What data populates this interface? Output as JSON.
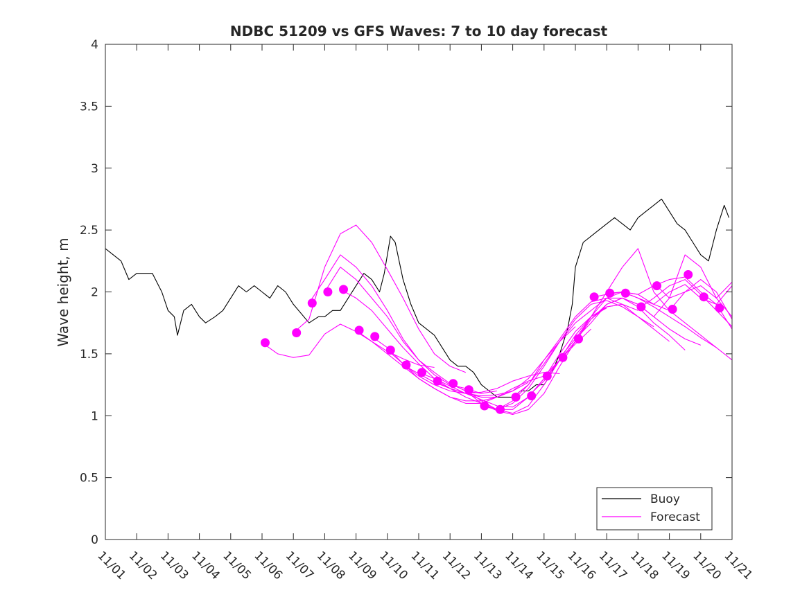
{
  "chart_data": {
    "type": "line",
    "title": "NDBC 51209 vs GFS Waves: 7 to 10 day forecast",
    "xlabel": "",
    "ylabel": "Wave height, m",
    "xlim": [
      0,
      20
    ],
    "ylim": [
      0,
      4
    ],
    "x_unit": "days since 11/01",
    "x_tick_values": [
      0,
      1,
      2,
      3,
      4,
      5,
      6,
      7,
      8,
      9,
      10,
      11,
      12,
      13,
      14,
      15,
      16,
      17,
      18,
      19,
      20
    ],
    "x_tick_labels": [
      "11/01",
      "11/02",
      "11/03",
      "11/04",
      "11/05",
      "11/06",
      "11/07",
      "11/08",
      "11/09",
      "11/10",
      "11/11",
      "11/12",
      "11/13",
      "11/14",
      "11/15",
      "11/16",
      "11/17",
      "11/18",
      "11/19",
      "11/20",
      "11/21"
    ],
    "y_tick_values": [
      0,
      0.5,
      1,
      1.5,
      2,
      2.5,
      3,
      3.5,
      4
    ],
    "y_tick_labels": [
      "0",
      "0.5",
      "1",
      "1.5",
      "2",
      "2.5",
      "3",
      "3.5",
      "4"
    ],
    "grid": false,
    "legend": {
      "position": "bottom-right",
      "entries": [
        "Buoy",
        "Forecast"
      ]
    },
    "colors": {
      "buoy": "#000000",
      "forecast": "#ff00ff"
    },
    "buoy": {
      "name": "Buoy",
      "x": [
        0,
        0.5,
        0.75,
        1,
        1.5,
        1.8,
        2,
        2.2,
        2.3,
        2.5,
        2.75,
        3,
        3.2,
        3.5,
        3.75,
        4,
        4.25,
        4.5,
        4.75,
        5,
        5.25,
        5.5,
        5.75,
        6,
        6.5,
        6.8,
        7,
        7.25,
        7.5,
        7.75,
        8,
        8.25,
        8.5,
        8.75,
        8.9,
        9,
        9.1,
        9.25,
        9.5,
        9.75,
        10,
        10.25,
        10.5,
        10.75,
        11,
        11.25,
        11.5,
        11.75,
        12,
        12.25,
        12.5,
        12.75,
        13,
        13.25,
        13.5,
        13.75,
        14,
        14.25,
        14.5,
        14.75,
        14.9,
        15,
        15.25,
        15.5,
        15.75,
        16,
        16.25,
        16.5,
        16.75,
        17,
        17.25,
        17.5,
        17.75,
        18,
        18.25,
        18.5,
        18.75,
        19,
        19.25,
        19.5,
        19.75,
        19.9
      ],
      "y": [
        2.35,
        2.25,
        2.1,
        2.15,
        2.15,
        2.0,
        1.85,
        1.8,
        1.65,
        1.85,
        1.9,
        1.8,
        1.75,
        1.8,
        1.85,
        1.95,
        2.05,
        2.0,
        2.05,
        2.0,
        1.95,
        2.05,
        2.0,
        1.9,
        1.75,
        1.8,
        1.8,
        1.85,
        1.85,
        1.95,
        2.05,
        2.15,
        2.1,
        2.0,
        2.15,
        2.3,
        2.45,
        2.4,
        2.1,
        1.9,
        1.75,
        1.7,
        1.65,
        1.55,
        1.45,
        1.4,
        1.4,
        1.35,
        1.25,
        1.2,
        1.15,
        1.15,
        1.15,
        1.2,
        1.2,
        1.25,
        1.25,
        1.35,
        1.5,
        1.7,
        1.9,
        2.2,
        2.4,
        2.45,
        2.5,
        2.55,
        2.6,
        2.55,
        2.5,
        2.6,
        2.65,
        2.7,
        2.75,
        2.65,
        2.55,
        2.5,
        2.4,
        2.3,
        2.25,
        2.5,
        2.7,
        2.6
      ]
    },
    "forecast_series": [
      {
        "name": "Forecast",
        "x": [
          5.0,
          5.5,
          6.0,
          6.5,
          7.0,
          7.5,
          8.0,
          8.5,
          9.0,
          9.5,
          10.0,
          10.5
        ],
        "y": [
          1.59,
          1.5,
          1.47,
          1.49,
          1.66,
          1.74,
          1.68,
          1.6,
          1.52,
          1.46,
          1.41,
          1.39
        ]
      },
      {
        "name": "Forecast",
        "x": [
          6.0,
          6.5,
          7.0,
          7.5,
          8.0,
          8.5,
          9.0,
          9.5,
          10.0,
          10.5,
          11.0,
          11.5
        ],
        "y": [
          1.67,
          1.78,
          2.2,
          2.47,
          2.54,
          2.4,
          2.18,
          1.95,
          1.7,
          1.5,
          1.4,
          1.35
        ]
      },
      {
        "name": "Forecast",
        "x": [
          6.5,
          7.0,
          7.5,
          8.0,
          8.5,
          9.0,
          9.5,
          10.0,
          10.5,
          11.0,
          11.5,
          12.0
        ],
        "y": [
          1.91,
          2.1,
          2.3,
          2.2,
          2.05,
          1.85,
          1.62,
          1.45,
          1.33,
          1.25,
          1.22,
          1.18
        ]
      },
      {
        "name": "Forecast",
        "x": [
          7.0,
          7.5,
          8.0,
          8.5,
          9.0,
          9.5,
          10.0,
          10.5,
          11.0,
          11.5,
          12.0,
          12.5
        ],
        "y": [
          2.0,
          2.2,
          2.1,
          1.95,
          1.8,
          1.6,
          1.45,
          1.35,
          1.26,
          1.2,
          1.18,
          1.2
        ]
      },
      {
        "name": "Forecast",
        "x": [
          7.5,
          8.0,
          8.5,
          9.0,
          9.5,
          10.0,
          10.5,
          11.0,
          11.5,
          12.0,
          12.5,
          13.0
        ],
        "y": [
          2.02,
          1.95,
          1.85,
          1.7,
          1.55,
          1.42,
          1.3,
          1.22,
          1.18,
          1.16,
          1.17,
          1.2
        ]
      },
      {
        "name": "Forecast",
        "x": [
          8.0,
          8.5,
          9.0,
          9.5,
          10.0,
          10.5,
          11.0,
          11.5,
          12.0,
          12.5,
          13.0,
          13.5
        ],
        "y": [
          1.69,
          1.6,
          1.5,
          1.4,
          1.3,
          1.22,
          1.15,
          1.12,
          1.12,
          1.15,
          1.2,
          1.27
        ]
      },
      {
        "name": "Forecast",
        "x": [
          8.5,
          9.0,
          9.5,
          10.0,
          10.5,
          11.0,
          11.5,
          12.0,
          12.5,
          13.0,
          13.5,
          14.0
        ],
        "y": [
          1.64,
          1.55,
          1.42,
          1.3,
          1.22,
          1.15,
          1.1,
          1.1,
          1.15,
          1.22,
          1.28,
          1.32
        ]
      },
      {
        "name": "Forecast",
        "x": [
          9.0,
          9.5,
          10.0,
          10.5,
          11.0,
          11.5,
          12.0,
          12.5,
          13.0,
          13.5,
          14.0,
          14.5
        ],
        "y": [
          1.53,
          1.42,
          1.32,
          1.25,
          1.2,
          1.18,
          1.19,
          1.22,
          1.28,
          1.32,
          1.35,
          1.34
        ]
      },
      {
        "name": "Forecast",
        "x": [
          9.5,
          10.0,
          10.5,
          11.0,
          11.5,
          12.0,
          12.5,
          13.0,
          13.5,
          14.0,
          14.5,
          15.0
        ],
        "y": [
          1.41,
          1.34,
          1.27,
          1.22,
          1.18,
          1.15,
          1.15,
          1.2,
          1.3,
          1.45,
          1.6,
          1.72
        ]
      },
      {
        "name": "Forecast",
        "x": [
          10.0,
          10.5,
          11.0,
          11.5,
          12.0,
          12.5,
          13.0,
          13.5,
          14.0,
          14.5,
          15.0,
          15.5
        ],
        "y": [
          1.35,
          1.3,
          1.24,
          1.18,
          1.13,
          1.08,
          1.07,
          1.15,
          1.3,
          1.45,
          1.58,
          1.7
        ]
      },
      {
        "name": "Forecast",
        "x": [
          10.5,
          11.0,
          11.5,
          12.0,
          12.5,
          13.0,
          13.5,
          14.0,
          14.5,
          15.0,
          15.5,
          16.0
        ],
        "y": [
          1.28,
          1.22,
          1.15,
          1.1,
          1.05,
          1.05,
          1.15,
          1.3,
          1.5,
          1.68,
          1.8,
          1.87
        ]
      },
      {
        "name": "Forecast",
        "x": [
          11.0,
          11.5,
          12.0,
          12.5,
          13.0,
          13.5,
          14.0,
          14.5,
          15.0,
          15.5,
          16.0,
          16.5
        ],
        "y": [
          1.26,
          1.2,
          1.1,
          1.04,
          1.01,
          1.05,
          1.18,
          1.4,
          1.6,
          1.78,
          1.88,
          1.9
        ]
      },
      {
        "name": "Forecast",
        "x": [
          11.5,
          12.0,
          12.5,
          13.0,
          13.5,
          14.0,
          14.5,
          15.0,
          15.5,
          16.0,
          16.5,
          17.0
        ],
        "y": [
          1.21,
          1.12,
          1.05,
          1.02,
          1.08,
          1.25,
          1.45,
          1.65,
          1.8,
          1.88,
          1.9,
          1.85
        ]
      },
      {
        "name": "Forecast",
        "x": [
          12.0,
          12.5,
          13.0,
          13.5,
          14.0,
          14.5,
          15.0,
          15.5,
          16.0,
          16.5,
          17.0,
          17.5
        ],
        "y": [
          1.08,
          1.05,
          1.1,
          1.22,
          1.4,
          1.6,
          1.78,
          1.9,
          1.93,
          1.88,
          1.8,
          1.72
        ]
      },
      {
        "name": "Forecast",
        "x": [
          12.5,
          13.0,
          13.5,
          14.0,
          14.5,
          15.0,
          15.5,
          16.0,
          16.5,
          17.0,
          17.5,
          18.0
        ],
        "y": [
          1.05,
          1.12,
          1.25,
          1.45,
          1.62,
          1.8,
          1.92,
          1.95,
          1.9,
          1.8,
          1.7,
          1.6
        ]
      },
      {
        "name": "Forecast",
        "x": [
          13.0,
          13.5,
          14.0,
          14.5,
          15.0,
          15.5,
          16.0,
          16.5,
          17.0,
          17.5,
          18.0,
          18.5
        ],
        "y": [
          1.15,
          1.25,
          1.42,
          1.6,
          1.75,
          1.85,
          1.95,
          1.95,
          1.88,
          1.75,
          1.65,
          1.53
        ]
      },
      {
        "name": "Forecast",
        "x": [
          13.5,
          14.0,
          14.5,
          15.0,
          15.5,
          16.0,
          16.5,
          17.0,
          17.5,
          18.0,
          18.5,
          19.0
        ],
        "y": [
          1.16,
          1.28,
          1.45,
          1.6,
          1.78,
          1.9,
          1.95,
          1.9,
          1.8,
          1.7,
          1.62,
          1.57
        ]
      },
      {
        "name": "Forecast",
        "x": [
          14.0,
          14.5,
          15.0,
          15.5,
          16.0,
          16.5,
          17.0,
          17.5,
          18.0,
          18.5,
          19.0,
          19.5
        ],
        "y": [
          1.32,
          1.45,
          1.6,
          1.8,
          1.95,
          2.0,
          1.95,
          1.88,
          1.8,
          1.72,
          1.63,
          1.55
        ]
      },
      {
        "name": "Forecast",
        "x": [
          14.5,
          15.0,
          15.5,
          16.0,
          16.5,
          17.0,
          17.5,
          18.0,
          18.5,
          19.0,
          19.5,
          20.0
        ],
        "y": [
          1.47,
          1.62,
          1.8,
          2.0,
          2.2,
          2.35,
          2.0,
          1.85,
          1.75,
          1.65,
          1.55,
          1.45
        ]
      },
      {
        "name": "Forecast",
        "x": [
          15.0,
          15.5,
          16.0,
          16.5,
          17.0,
          17.5,
          18.0,
          18.5,
          19.0,
          19.5,
          20.0
        ],
        "y": [
          1.62,
          1.75,
          1.9,
          1.95,
          1.9,
          1.8,
          1.95,
          2.3,
          2.2,
          1.95,
          1.8
        ]
      },
      {
        "name": "Forecast",
        "x": [
          15.6,
          16.0,
          16.5,
          17.0,
          17.5,
          18.0,
          18.5,
          19.0,
          19.5,
          20.0
        ],
        "y": [
          1.96,
          1.98,
          2.0,
          1.98,
          2.05,
          2.1,
          2.12,
          2.0,
          1.9,
          2.05
        ]
      },
      {
        "name": "Forecast",
        "x": [
          16.1,
          16.5,
          17.0,
          17.5,
          18.0,
          18.5,
          19.0,
          19.5,
          20.0
        ],
        "y": [
          1.99,
          2.0,
          1.98,
          1.9,
          1.85,
          2.0,
          2.1,
          2.0,
          1.78
        ]
      },
      {
        "name": "Forecast",
        "x": [
          16.6,
          17.0,
          17.5,
          18.0,
          18.5,
          19.0,
          19.5,
          20.0
        ],
        "y": [
          1.99,
          1.95,
          1.9,
          2.0,
          2.06,
          1.95,
          1.9,
          1.7
        ]
      },
      {
        "name": "Forecast",
        "x": [
          17.1,
          17.5,
          18.0,
          18.5,
          19.0,
          19.5,
          20.0
        ],
        "y": [
          1.88,
          1.95,
          2.05,
          2.1,
          1.98,
          1.85,
          1.72
        ]
      },
      {
        "name": "Forecast",
        "x": [
          17.6,
          18.0,
          18.5,
          19.0,
          19.5,
          20.0
        ],
        "y": [
          2.05,
          1.95,
          2.0,
          2.05,
          1.95,
          2.08
        ]
      }
    ],
    "forecast_markers": {
      "x": [
        5.1,
        6.1,
        6.6,
        7.1,
        7.6,
        8.1,
        8.6,
        9.1,
        9.6,
        10.1,
        10.6,
        11.1,
        11.6,
        12.1,
        12.6,
        13.1,
        13.6,
        14.1,
        14.6,
        15.1,
        15.6,
        16.1,
        16.6,
        17.1,
        17.6,
        18.1,
        18.6,
        19.1,
        19.6
      ],
      "y": [
        1.59,
        1.67,
        1.91,
        2.0,
        2.02,
        1.69,
        1.64,
        1.53,
        1.41,
        1.35,
        1.28,
        1.26,
        1.21,
        1.08,
        1.05,
        1.15,
        1.16,
        1.32,
        1.47,
        1.62,
        1.96,
        1.99,
        1.99,
        1.88,
        2.05,
        1.86,
        2.14,
        1.96,
        1.87
      ]
    }
  }
}
